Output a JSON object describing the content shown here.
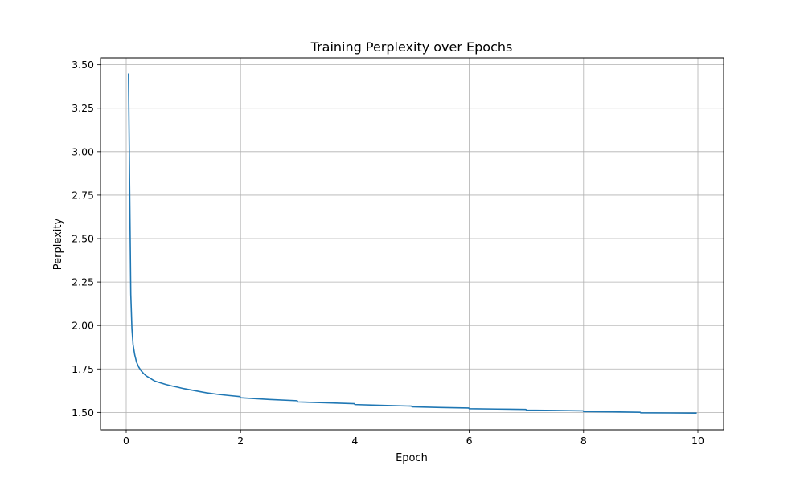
{
  "chart_data": {
    "type": "line",
    "title": "Training Perplexity over Epochs",
    "xlabel": "Epoch",
    "ylabel": "Perplexity",
    "xlim": [
      -0.45,
      10.45
    ],
    "ylim": [
      1.4,
      3.54
    ],
    "xticks": [
      0,
      2,
      4,
      6,
      8,
      10
    ],
    "yticks": [
      1.5,
      1.75,
      2.0,
      2.25,
      2.5,
      2.75,
      3.0,
      3.25,
      3.5
    ],
    "xtick_labels": [
      "0",
      "2",
      "4",
      "6",
      "8",
      "10"
    ],
    "ytick_labels": [
      "1.50",
      "1.75",
      "2.00",
      "2.25",
      "2.50",
      "2.75",
      "3.00",
      "3.25",
      "3.50"
    ],
    "grid": true,
    "line_color": "#1f77b4",
    "series": [
      {
        "x": [
          0.04,
          0.06,
          0.08,
          0.1,
          0.12,
          0.15,
          0.18,
          0.22,
          0.26,
          0.3,
          0.35,
          0.4,
          0.5,
          0.6,
          0.7,
          0.8,
          0.9,
          1.0,
          1.2,
          1.4,
          1.6,
          1.8,
          1.99,
          2.0,
          2.5,
          2.99,
          3.0,
          3.5,
          3.99,
          4.0,
          4.5,
          4.99,
          5.0,
          5.5,
          5.99,
          6.0,
          6.5,
          6.99,
          7.0,
          7.5,
          7.99,
          8.0,
          8.5,
          8.99,
          9.0,
          9.5,
          9.98
        ],
        "y": [
          3.45,
          2.8,
          2.18,
          1.98,
          1.89,
          1.83,
          1.79,
          1.76,
          1.74,
          1.725,
          1.71,
          1.7,
          1.68,
          1.67,
          1.66,
          1.652,
          1.645,
          1.637,
          1.625,
          1.613,
          1.604,
          1.597,
          1.591,
          1.584,
          1.574,
          1.567,
          1.56,
          1.555,
          1.55,
          1.545,
          1.54,
          1.536,
          1.532,
          1.528,
          1.525,
          1.521,
          1.519,
          1.517,
          1.513,
          1.511,
          1.509,
          1.505,
          1.503,
          1.501,
          1.498,
          1.497,
          1.496
        ]
      }
    ]
  }
}
